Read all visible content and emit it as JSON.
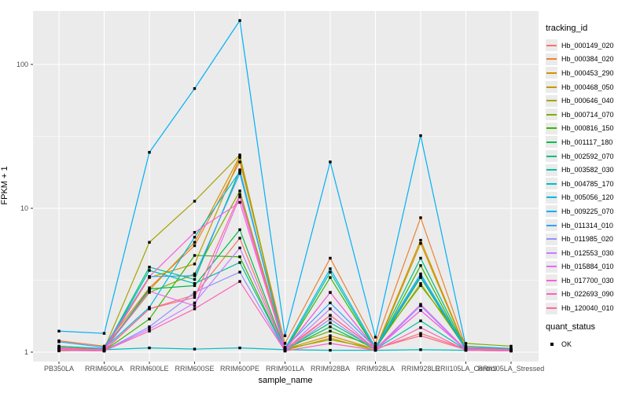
{
  "panel": {
    "bg": "#EBEBEB",
    "grid_color": "#FFFFFF",
    "tick_color": "#333333",
    "axis_text_color": "#4D4D4D",
    "point_color": "#000000"
  },
  "legend": {
    "tracking_title": "tracking_id",
    "quant_title": "quant_status",
    "quant_items": [
      {
        "label": "OK"
      }
    ]
  },
  "chart_data": {
    "type": "line",
    "title": "",
    "xlabel": "sample_name",
    "ylabel": "FPKM + 1",
    "y_scale": "log10",
    "y_ticks": [
      1,
      10,
      100
    ],
    "y_tick_labels": [
      "1",
      "10",
      "100"
    ],
    "y_minor_ticks": [
      3.162,
      31.62
    ],
    "ylim": [
      0.86,
      236
    ],
    "grid": true,
    "legend_position": "right",
    "point_marker": "black-square",
    "categories": [
      "PB350LA",
      "RRIM600LA",
      "RRIM600LE",
      "RRIM600SE",
      "RRIM600PE",
      "RRIM901LA",
      "RRIM928BA",
      "RRIM928LA",
      "RRIM928LE",
      "RRII105LA_Control",
      "RRII105LA_Stressed"
    ],
    "series": [
      {
        "name": "Hb_000149_020",
        "color": "#F8766D",
        "values": [
          1.05,
          1.02,
          2.0,
          2.5,
          6.2,
          1.02,
          1.8,
          1.05,
          1.35,
          1.05,
          1.02
        ]
      },
      {
        "name": "Hb_000384_020",
        "color": "#EA8331",
        "values": [
          1.2,
          1.1,
          2.8,
          5.5,
          21.0,
          1.15,
          4.5,
          1.15,
          8.6,
          1.08,
          1.05
        ]
      },
      {
        "name": "Hb_000453_290",
        "color": "#D89000",
        "values": [
          1.05,
          1.05,
          2.7,
          5.8,
          23.0,
          1.05,
          1.3,
          1.05,
          6.0,
          1.05,
          1.03
        ]
      },
      {
        "name": "Hb_000468_050",
        "color": "#C09B00",
        "values": [
          1.02,
          1.03,
          3.3,
          4.1,
          22.5,
          1.03,
          1.25,
          1.03,
          5.7,
          1.04,
          1.02
        ]
      },
      {
        "name": "Hb_000646_040",
        "color": "#A3A500",
        "values": [
          1.1,
          1.05,
          5.8,
          11.2,
          23.5,
          1.05,
          1.22,
          1.06,
          3.0,
          1.06,
          1.05
        ]
      },
      {
        "name": "Hb_000714_070",
        "color": "#7CAE00",
        "values": [
          1.08,
          1.04,
          2.6,
          3.5,
          13.2,
          1.08,
          1.4,
          1.1,
          2.9,
          1.15,
          1.1
        ]
      },
      {
        "name": "Hb_000816_150",
        "color": "#39B600",
        "values": [
          1.03,
          1.02,
          1.7,
          4.7,
          4.6,
          1.02,
          3.3,
          1.04,
          4.0,
          1.03,
          1.02
        ]
      },
      {
        "name": "Hb_001117_180",
        "color": "#00BB4E",
        "values": [
          1.04,
          1.03,
          2.75,
          2.9,
          7.1,
          1.04,
          1.5,
          1.05,
          3.3,
          1.04,
          1.03
        ]
      },
      {
        "name": "Hb_002592_070",
        "color": "#00BF7D",
        "values": [
          1.06,
          1.04,
          3.9,
          3.2,
          18.5,
          1.04,
          1.6,
          1.06,
          4.5,
          1.05,
          1.04
        ]
      },
      {
        "name": "Hb_003582_030",
        "color": "#00C1A3",
        "values": [
          1.05,
          1.03,
          3.7,
          3.0,
          4.2,
          1.03,
          3.6,
          1.05,
          1.65,
          1.04,
          1.03
        ]
      },
      {
        "name": "Hb_004785_170",
        "color": "#00BFC4",
        "values": [
          1.05,
          1.04,
          1.07,
          1.05,
          1.07,
          1.04,
          1.03,
          1.03,
          1.04,
          1.03,
          1.03
        ]
      },
      {
        "name": "Hb_005056_120",
        "color": "#00BAE0",
        "values": [
          1.1,
          1.06,
          2.05,
          6.3,
          18.0,
          1.06,
          3.8,
          1.08,
          3.5,
          1.06,
          1.04
        ]
      },
      {
        "name": "Hb_009225_070",
        "color": "#00B0F6",
        "values": [
          1.4,
          1.35,
          24.5,
          68.0,
          202.0,
          1.3,
          21.0,
          1.27,
          32.0,
          1.1,
          1.06
        ]
      },
      {
        "name": "Hb_011314_010",
        "color": "#35A2FF",
        "values": [
          1.18,
          1.08,
          3.35,
          3.4,
          17.5,
          1.07,
          2.2,
          1.07,
          3.4,
          1.06,
          1.04
        ]
      },
      {
        "name": "Hb_011985_020",
        "color": "#9590FF",
        "values": [
          1.04,
          1.02,
          1.5,
          2.6,
          3.6,
          1.02,
          1.7,
          1.04,
          2.1,
          1.03,
          1.02
        ]
      },
      {
        "name": "Hb_012553_030",
        "color": "#C77CFF",
        "values": [
          1.03,
          1.02,
          1.45,
          2.2,
          5.3,
          1.03,
          2.0,
          1.04,
          1.95,
          1.04,
          1.03
        ]
      },
      {
        "name": "Hb_015884_010",
        "color": "#E76BF3",
        "values": [
          1.05,
          1.03,
          2.65,
          2.1,
          12.0,
          1.03,
          2.6,
          1.05,
          2.15,
          1.04,
          1.03
        ]
      },
      {
        "name": "Hb_017700_030",
        "color": "#FA62DB",
        "values": [
          1.06,
          1.04,
          3.35,
          6.8,
          11.0,
          1.04,
          2.6,
          1.06,
          1.95,
          1.05,
          1.04
        ]
      },
      {
        "name": "Hb_022693_090",
        "color": "#FF62BC",
        "values": [
          1.04,
          1.02,
          1.4,
          2.0,
          3.1,
          1.02,
          1.15,
          1.03,
          1.48,
          1.03,
          1.02
        ]
      },
      {
        "name": "Hb_120040_010",
        "color": "#FF6A98",
        "values": [
          1.07,
          1.03,
          2.0,
          2.4,
          12.5,
          1.05,
          1.8,
          1.06,
          1.3,
          1.04,
          1.03
        ]
      }
    ]
  }
}
